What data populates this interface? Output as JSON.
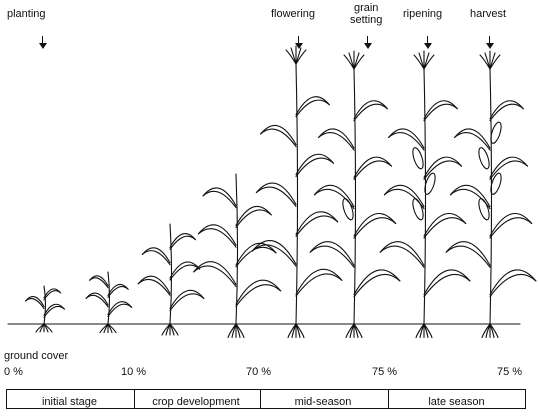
{
  "labels": {
    "planting": "planting",
    "flowering": "flowering",
    "grain_setting_line1": "grain",
    "grain_setting_line2": "setting",
    "ripening": "ripening",
    "harvest": "harvest",
    "ground_cover": "ground cover"
  },
  "ground_cover_values": [
    "0 %",
    "10 %",
    "70 %",
    "75 %",
    "75 %"
  ],
  "stages": [
    "initial stage",
    "crop development",
    "mid-season",
    "late season"
  ],
  "colors": {
    "ink": "#111111",
    "background": "#ffffff"
  }
}
